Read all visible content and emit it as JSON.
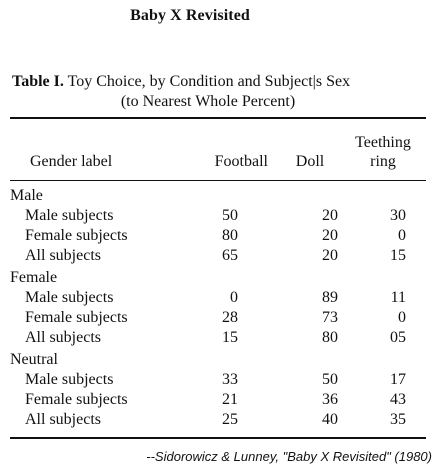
{
  "heading": "Baby X Revisited",
  "table": {
    "caption_label": "Table I.",
    "caption_text": "Toy Choice, by Condition and Subject|s Sex",
    "caption_line2": "(to Nearest Whole Percent)",
    "columns": {
      "gender_label": "Gender label",
      "football": "Football",
      "doll": "Doll",
      "teething_line1": "Teething",
      "teething_line2": "ring"
    },
    "groups": [
      {
        "label": "Male",
        "rows": [
          {
            "label": "Male subjects",
            "football": "50",
            "doll": "20",
            "teething": "30"
          },
          {
            "label": "Female subjects",
            "football": "80",
            "doll": "20",
            "teething": "0"
          },
          {
            "label": "All subjects",
            "football": "65",
            "doll": "20",
            "teething": "15"
          }
        ]
      },
      {
        "label": "Female",
        "rows": [
          {
            "label": "Male subjects",
            "football": "0",
            "doll": "89",
            "teething": "11"
          },
          {
            "label": "Female subjects",
            "football": "28",
            "doll": "73",
            "teething": "0"
          },
          {
            "label": "All subjects",
            "football": "15",
            "doll": "80",
            "teething": "05"
          }
        ]
      },
      {
        "label": "Neutral",
        "rows": [
          {
            "label": "Male subjects",
            "football": "33",
            "doll": "50",
            "teething": "17"
          },
          {
            "label": "Female subjects",
            "football": "21",
            "doll": "36",
            "teething": "43"
          },
          {
            "label": "All subjects",
            "football": "25",
            "doll": "40",
            "teething": "35"
          }
        ]
      }
    ]
  },
  "footer": "--Sidorowicz & Lunney, \"Baby X Revisited\" (1980)"
}
